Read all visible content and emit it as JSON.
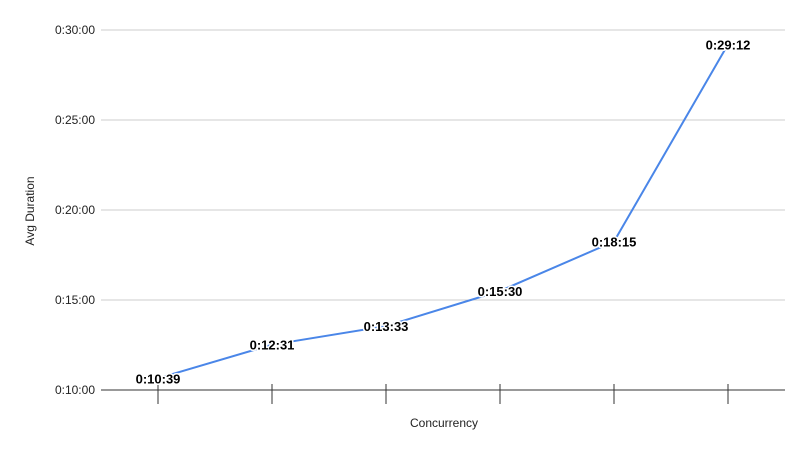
{
  "chart_data": {
    "type": "line",
    "title": "",
    "xlabel": "Concurrency",
    "ylabel": "Avg Duration",
    "categories": [
      "",
      "",
      "",
      "",
      "",
      ""
    ],
    "series": [
      {
        "values": [
          "0:10:39",
          "0:12:31",
          "0:13:33",
          "0:15:30",
          "0:18:15",
          "0:29:12"
        ],
        "data_labels": [
          "0:10:39",
          "0:12:31",
          "0:13:33",
          "0:15:30",
          "0:18:15",
          "0:29:12"
        ]
      }
    ],
    "ylim": [
      "0:10:00",
      "0:30:00"
    ],
    "yticks": [
      "0:10:00",
      "0:15:00",
      "0:20:00",
      "0:25:00",
      "0:30:00"
    ],
    "grid": true,
    "legend": "none",
    "colors": {
      "line": "#4a86e8",
      "grid": "#cccccc",
      "axis": "#333333"
    }
  }
}
